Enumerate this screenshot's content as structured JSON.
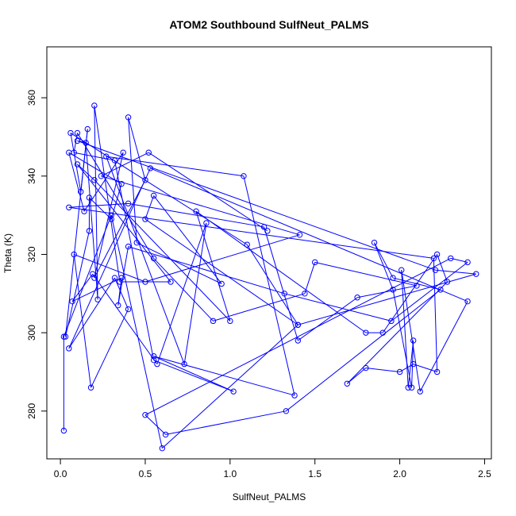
{
  "chart_data": {
    "type": "line",
    "title": "ATOM2 Southbound SulfNeut_PALMS",
    "xlabel": "SulfNeut_PALMS",
    "ylabel": "Theta (K)",
    "xlim": [
      -0.08,
      2.54
    ],
    "ylim": [
      267.8,
      373.0
    ],
    "xticks": [
      0.0,
      0.5,
      1.0,
      1.5,
      2.0,
      2.5
    ],
    "xtick_labels": [
      "0.0",
      "0.5",
      "1.0",
      "1.5",
      "2.0",
      "2.5"
    ],
    "yticks": [
      280,
      300,
      320,
      340,
      360
    ],
    "ytick_labels": [
      "280",
      "300",
      "320",
      "340",
      "360"
    ],
    "grid": false,
    "series_color": "#0000ff",
    "marker": "open-circle",
    "series": [
      {
        "x": [
          0.02,
          0.02,
          0.3,
          0.6,
          1.4,
          1.1,
          0.06,
          0.12,
          0.16,
          0.03,
          0.17,
          0.17,
          0.3,
          0.36,
          0.05,
          0.14,
          0.37,
          0.2,
          0.5,
          0.4,
          0.45,
          0.95,
          0.55,
          0.5,
          1.4,
          2.45,
          2.21,
          0.1,
          0.15,
          0.22,
          0.2,
          0.35,
          0.65,
          0.1,
          0.2,
          1.0,
          0.8,
          1.8,
          1.9,
          2.22,
          2.28,
          1.69,
          1.8,
          2.0,
          2.08,
          2.22,
          2.2,
          0.05,
          0.4,
          1.2,
          1.4,
          1.75,
          2.1,
          1.5,
          1.44,
          0.9,
          0.55,
          0.1,
          0.08,
          0.32,
          0.55,
          1.02,
          0.55,
          1.38,
          1.08,
          0.27,
          0.73,
          0.86,
          0.57,
          0.19,
          0.07,
          0.36,
          0.34,
          0.4,
          1.32,
          1.95,
          2.4,
          2.3,
          0.5,
          0.62,
          1.33,
          2.24,
          1.96,
          1.85,
          1.96,
          2.07,
          2.08,
          2.05,
          2.01,
          2.12,
          2.4,
          0.53,
          0.05,
          0.32,
          0.4,
          0.18,
          0.08,
          0.5,
          1.41,
          0.24,
          0.52,
          1.22
        ],
        "y": [
          275.0,
          299.0,
          330.0,
          270.5,
          302.0,
          322.5,
          351.0,
          336.0,
          352.0,
          299.0,
          326.0,
          334.5,
          329.0,
          338.0,
          346.0,
          331.0,
          346.0,
          314.0,
          339.0,
          355.0,
          323.0,
          312.5,
          335.0,
          329.0,
          302.0,
          315.0,
          316.0,
          349.0,
          348.5,
          308.5,
          358.0,
          313.0,
          313.0,
          343.0,
          339.0,
          303.0,
          331.0,
          300.0,
          300.0,
          320.0,
          313.0,
          287.0,
          291.0,
          290.0,
          292.0,
          290.0,
          319.0,
          332.0,
          333.0,
          327.0,
          298.0,
          309.0,
          312.0,
          318.0,
          310.0,
          303.0,
          319.0,
          351.0,
          346.0,
          344.0,
          293.0,
          285.0,
          294.0,
          284.0,
          340.0,
          345.0,
          292.0,
          328.0,
          292.0,
          315.0,
          308.0,
          314.0,
          307.0,
          322.0,
          310.0,
          303.0,
          318.0,
          319.0,
          279.0,
          274.0,
          280.0,
          311.0,
          314.0,
          323.0,
          311.0,
          286.0,
          298.0,
          286.0,
          316.0,
          285.0,
          308.0,
          342.0,
          296.0,
          314.0,
          306.0,
          286.0,
          320.0,
          313.0,
          325.0,
          340.0,
          346.0,
          326.0
        ]
      }
    ]
  }
}
